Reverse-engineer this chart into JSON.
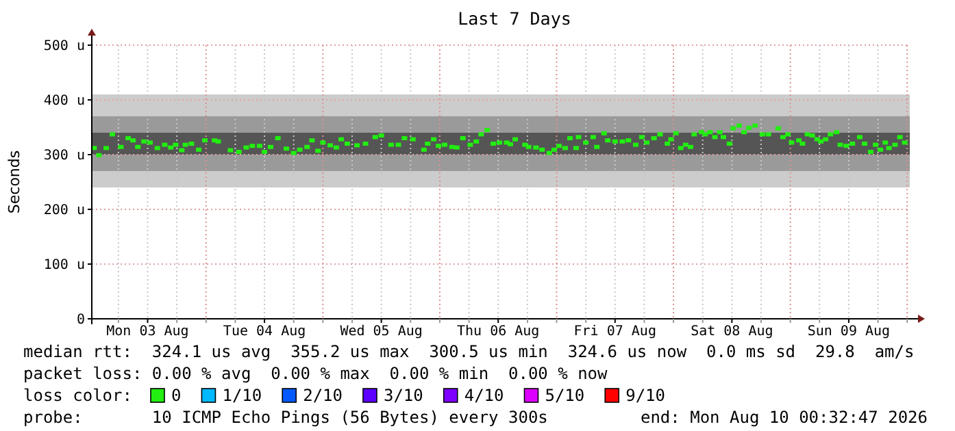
{
  "chart_data": {
    "type": "scatter",
    "title": "Last 7 Days",
    "ylabel": "Seconds",
    "legend_title": "loss color:",
    "legend": "bottom",
    "marker": "square",
    "grid": true,
    "xlim": [
      "2026-08-03T00:32",
      "2026-08-10T00:32"
    ],
    "xticks": [
      {
        "value": "2026-08-03T06:00",
        "label": null
      },
      {
        "value": "2026-08-03T12:00",
        "label": "Mon 03 Aug"
      },
      {
        "value": "2026-08-03T18:00",
        "label": null
      },
      {
        "value": "2026-08-04T00:00",
        "label": null
      },
      {
        "value": "2026-08-04T06:00",
        "label": null
      },
      {
        "value": "2026-08-04T12:00",
        "label": "Tue 04 Aug"
      },
      {
        "value": "2026-08-04T18:00",
        "label": null
      },
      {
        "value": "2026-08-05T00:00",
        "label": null
      },
      {
        "value": "2026-08-05T06:00",
        "label": null
      },
      {
        "value": "2026-08-05T12:00",
        "label": "Wed 05 Aug"
      },
      {
        "value": "2026-08-05T18:00",
        "label": null
      },
      {
        "value": "2026-08-06T00:00",
        "label": null
      },
      {
        "value": "2026-08-06T06:00",
        "label": null
      },
      {
        "value": "2026-08-06T12:00",
        "label": "Thu 06 Aug"
      },
      {
        "value": "2026-08-06T18:00",
        "label": null
      },
      {
        "value": "2026-08-07T00:00",
        "label": null
      },
      {
        "value": "2026-08-07T06:00",
        "label": null
      },
      {
        "value": "2026-08-07T12:00",
        "label": "Fri 07 Aug"
      },
      {
        "value": "2026-08-07T18:00",
        "label": null
      },
      {
        "value": "2026-08-08T00:00",
        "label": null
      },
      {
        "value": "2026-08-08T06:00",
        "label": null
      },
      {
        "value": "2026-08-08T12:00",
        "label": "Sat 08 Aug"
      },
      {
        "value": "2026-08-08T18:00",
        "label": null
      },
      {
        "value": "2026-08-09T00:00",
        "label": null
      },
      {
        "value": "2026-08-09T06:00",
        "label": null
      },
      {
        "value": "2026-08-09T12:00",
        "label": "Sun 09 Aug"
      },
      {
        "value": "2026-08-09T18:00",
        "label": null
      },
      {
        "value": "2026-08-10T00:00",
        "label": null
      }
    ],
    "ylim": [
      0,
      500
    ],
    "yticks": [
      0,
      {
        "value": 100,
        "label": "100 u"
      },
      {
        "value": 200,
        "label": "200 u"
      },
      {
        "value": 300,
        "label": "300 u"
      },
      {
        "value": 400,
        "label": "400 u"
      },
      {
        "value": 500,
        "label": "500 u"
      }
    ],
    "bands": [
      {
        "axis": "y",
        "from": 240,
        "to": 410,
        "color": "#cccccc"
      },
      {
        "axis": "y",
        "from": 270,
        "to": 370,
        "color": "#9a9a9a"
      },
      {
        "axis": "y",
        "from": 300,
        "to": 340,
        "color": "#555555"
      }
    ],
    "x": [
      "2026-08-03T01:00",
      "2026-08-03T02:00",
      "2026-08-03T03:30",
      "2026-08-03T04:45",
      "2026-08-03T06:30",
      "2026-08-03T08:00",
      "2026-08-03T09:00",
      "2026-08-03T10:00",
      "2026-08-03T11:15",
      "2026-08-03T12:30",
      "2026-08-03T14:00",
      "2026-08-03T15:30",
      "2026-08-03T16:45",
      "2026-08-03T17:45",
      "2026-08-03T19:00",
      "2026-08-03T19:45",
      "2026-08-03T21:00",
      "2026-08-03T22:30",
      "2026-08-03T23:45",
      "2026-08-04T01:45",
      "2026-08-04T02:30",
      "2026-08-04T05:00",
      "2026-08-04T06:45",
      "2026-08-04T08:15",
      "2026-08-04T09:30",
      "2026-08-04T11:00",
      "2026-08-04T12:00",
      "2026-08-04T13:15",
      "2026-08-04T14:45",
      "2026-08-04T16:30",
      "2026-08-04T18:00",
      "2026-08-04T19:15",
      "2026-08-04T20:45",
      "2026-08-04T21:45",
      "2026-08-04T23:00",
      "2026-08-05T00:00",
      "2026-08-05T01:30",
      "2026-08-05T02:45",
      "2026-08-05T03:45",
      "2026-08-05T05:00",
      "2026-08-05T07:00",
      "2026-08-05T08:45",
      "2026-08-05T10:45",
      "2026-08-05T12:00",
      "2026-08-05T14:00",
      "2026-08-05T15:30",
      "2026-08-05T16:45",
      "2026-08-05T18:30",
      "2026-08-05T20:45",
      "2026-08-05T21:30",
      "2026-08-05T22:45",
      "2026-08-05T23:45",
      "2026-08-06T01:00",
      "2026-08-06T02:30",
      "2026-08-06T03:30",
      "2026-08-06T04:45",
      "2026-08-06T06:15",
      "2026-08-06T07:30",
      "2026-08-06T08:30",
      "2026-08-06T09:45",
      "2026-08-06T11:00",
      "2026-08-06T12:15",
      "2026-08-06T13:45",
      "2026-08-06T14:30",
      "2026-08-06T15:30",
      "2026-08-06T17:30",
      "2026-08-06T18:15",
      "2026-08-06T19:45",
      "2026-08-06T21:00",
      "2026-08-06T22:30",
      "2026-08-06T23:30",
      "2026-08-07T00:30",
      "2026-08-07T01:45",
      "2026-08-07T02:45",
      "2026-08-07T04:00",
      "2026-08-07T04:30",
      "2026-08-07T06:00",
      "2026-08-07T07:30",
      "2026-08-07T08:15",
      "2026-08-07T09:45",
      "2026-08-07T10:30",
      "2026-08-07T12:00",
      "2026-08-07T13:30",
      "2026-08-07T14:45",
      "2026-08-07T16:15",
      "2026-08-07T17:30",
      "2026-08-07T18:30",
      "2026-08-07T20:00",
      "2026-08-07T21:15",
      "2026-08-07T22:45",
      "2026-08-07T23:30",
      "2026-08-08T00:30",
      "2026-08-08T01:30",
      "2026-08-08T02:30",
      "2026-08-08T03:30",
      "2026-08-08T04:15",
      "2026-08-08T05:45",
      "2026-08-08T06:30",
      "2026-08-08T07:30",
      "2026-08-08T08:30",
      "2026-08-08T09:30",
      "2026-08-08T10:15",
      "2026-08-08T11:30",
      "2026-08-08T12:15",
      "2026-08-08T13:30",
      "2026-08-08T14:30",
      "2026-08-08T15:30",
      "2026-08-08T16:45",
      "2026-08-08T18:15",
      "2026-08-08T19:30",
      "2026-08-08T21:30",
      "2026-08-08T22:30",
      "2026-08-08T23:30",
      "2026-08-09T00:15",
      "2026-08-09T01:45",
      "2026-08-09T02:30",
      "2026-08-09T03:30",
      "2026-08-09T04:30",
      "2026-08-09T05:30",
      "2026-08-09T06:15",
      "2026-08-09T07:15",
      "2026-08-09T08:15",
      "2026-08-09T09:30",
      "2026-08-09T10:15",
      "2026-08-09T11:30",
      "2026-08-09T12:45",
      "2026-08-09T14:15",
      "2026-08-09T15:15",
      "2026-08-09T16:30",
      "2026-08-09T17:30",
      "2026-08-09T18:30",
      "2026-08-09T19:30",
      "2026-08-09T20:15",
      "2026-08-09T21:30",
      "2026-08-09T22:30",
      "2026-08-09T23:30"
    ],
    "series": [
      {
        "name": "0",
        "color": "#22ee11",
        "values": [
          312,
          299,
          312,
          337,
          314,
          330,
          326,
          314,
          324,
          322,
          312,
          318,
          313,
          318,
          308,
          318,
          320,
          309,
          326,
          326,
          324,
          308,
          305,
          313,
          316,
          316,
          305,
          314,
          330,
          311,
          303,
          309,
          314,
          326,
          307,
          322,
          317,
          313,
          328,
          320,
          317,
          320,
          332,
          335,
          318,
          318,
          330,
          328,
          309,
          320,
          328,
          316,
          318,
          314,
          313,
          330,
          318,
          324,
          337,
          345,
          320,
          322,
          322,
          319,
          328,
          318,
          314,
          313,
          309,
          303,
          309,
          316,
          312,
          330,
          312,
          332,
          322,
          332,
          314,
          339,
          326,
          324,
          324,
          326,
          318,
          332,
          322,
          330,
          337,
          320,
          328,
          339,
          312,
          318,
          314,
          337,
          341,
          337,
          341,
          332,
          341,
          332,
          320,
          348,
          353,
          341,
          349,
          353,
          337,
          337,
          348,
          332,
          337,
          322,
          326,
          320,
          337,
          335,
          328,
          324,
          328,
          337,
          341,
          318,
          316,
          320,
          332,
          320,
          305,
          318,
          309,
          322,
          312,
          318,
          332,
          322
        ]
      },
      {
        "name": "1/10",
        "color": "#00b8ff",
        "x": [
          null
        ],
        "values": [
          null
        ]
      },
      {
        "name": "2/10",
        "color": "#0059ff",
        "x": [
          null
        ],
        "values": [
          null
        ]
      },
      {
        "name": "3/10",
        "color": "#5e00ff",
        "x": [
          null
        ],
        "values": [
          null
        ]
      },
      {
        "name": "4/10",
        "color": "#7e00ff",
        "x": [
          null
        ],
        "values": [
          null
        ]
      },
      {
        "name": "5/10",
        "color": "#dd00ff",
        "x": [
          null
        ],
        "values": [
          null
        ]
      },
      {
        "name": "9/10",
        "color": "#ff0000",
        "x": [
          null
        ],
        "values": [
          null
        ]
      }
    ],
    "annotations": [
      "median rtt:  324.1 us avg  355.2 us max  300.5 us min  324.6 us now  0.0 ms sd  29.8  am/s",
      "packet loss: 0.00 % avg  0.00 % max  0.00 % min  0.00 % now",
      "probe:       10 ICMP Echo Pings (56 Bytes) every 300s",
      "end: Mon Aug 10 00:32:47 2026"
    ]
  }
}
